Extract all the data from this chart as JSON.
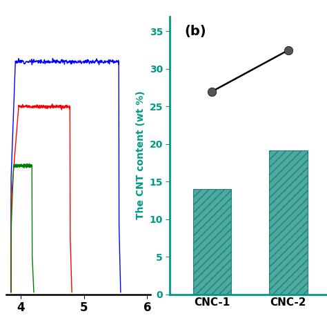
{
  "left_panel": {
    "curves": [
      {
        "color": "blue",
        "x_rise_start": 3.85,
        "x_rise_end": 3.92,
        "x_plateau_end": 5.55,
        "x_drop_end": 5.58,
        "y_plateau": 33.5,
        "y_noise_scale": 0.15
      },
      {
        "color": "red",
        "x_rise_start": 3.85,
        "x_rise_end": 3.97,
        "x_plateau_end": 4.78,
        "x_drop_end": 4.81,
        "y_plateau": 27.0,
        "y_noise_scale": 0.12
      },
      {
        "color": "green",
        "x_rise_start": 3.85,
        "x_rise_end": 3.89,
        "x_plateau_end": 4.18,
        "x_drop_end": 4.21,
        "y_plateau": 18.5,
        "y_noise_scale": 0.1
      }
    ],
    "xlim": [
      3.78,
      6.05
    ],
    "xticks": [
      4,
      5,
      6
    ],
    "ylim": [
      0,
      40
    ],
    "x_left_clip": 3.85
  },
  "right_panel": {
    "categories": [
      "CNC-1",
      "CNC-2"
    ],
    "bar_values": [
      14.0,
      19.2
    ],
    "line_x": [
      0,
      1
    ],
    "line_values": [
      27.0,
      32.5
    ],
    "bar_color": "#4aaba0",
    "line_color": "black",
    "marker_color": "#555555",
    "ylabel": "The CNT content (wt %)",
    "ylabel_color": "#009988",
    "label_b": "(b)",
    "ylim": [
      0,
      37
    ],
    "yticks": [
      0,
      5,
      10,
      15,
      20,
      25,
      30,
      35
    ],
    "hatch": "///",
    "bar_edgecolor": "#2a7a77",
    "axis_color": "#009988",
    "bar_width": 0.5,
    "xlim": [
      -0.55,
      1.85
    ]
  }
}
